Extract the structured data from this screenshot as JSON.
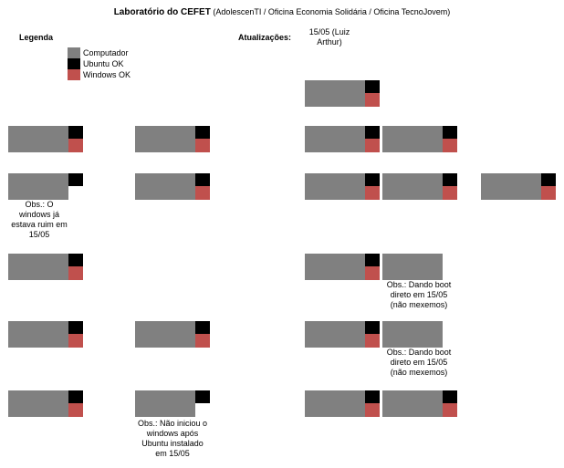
{
  "header": {
    "title_bold": "Laboratório do CEFET",
    "title_rest": "(AdolescenTI / Oficina Economia Solidária / Oficina TecnoJovem)"
  },
  "legend": {
    "title": "Legenda",
    "items": [
      {
        "label": "Computador",
        "color": "#808080"
      },
      {
        "label": "Ubuntu OK",
        "color": "#000000"
      },
      {
        "label": "Windows OK",
        "color": "#c0504d"
      }
    ]
  },
  "updates": {
    "title": "Atualizações:",
    "entries": [
      "15/05 (Luiz Arthur)"
    ]
  },
  "notes": {
    "n1": "Obs.: O windows já estava ruim em 15/05",
    "n2": "Obs.: Dando boot direto em 15/05 (não mexemos)",
    "n3": "Obs.: Dando boot direto em 15/05 (não mexemos)",
    "n4": "Obs.: Não iniciou o windows após Ubuntu instalado em 15/05"
  },
  "computers": [
    {
      "ubuntu_ok": true,
      "windows_ok": true
    },
    {
      "ubuntu_ok": true,
      "windows_ok": true
    },
    {
      "ubuntu_ok": true,
      "windows_ok": true
    },
    {
      "ubuntu_ok": true,
      "windows_ok": true
    },
    {
      "ubuntu_ok": true,
      "windows_ok": true
    },
    {
      "ubuntu_ok": true,
      "windows_ok": false
    },
    {
      "ubuntu_ok": true,
      "windows_ok": true
    },
    {
      "ubuntu_ok": true,
      "windows_ok": true
    },
    {
      "ubuntu_ok": true,
      "windows_ok": true
    },
    {
      "ubuntu_ok": true,
      "windows_ok": true
    },
    {
      "ubuntu_ok": true,
      "windows_ok": true
    },
    {
      "ubuntu_ok": true,
      "windows_ok": true
    },
    {
      "ubuntu_ok": false,
      "windows_ok": false
    },
    {
      "ubuntu_ok": true,
      "windows_ok": true
    },
    {
      "ubuntu_ok": true,
      "windows_ok": true
    },
    {
      "ubuntu_ok": true,
      "windows_ok": true
    },
    {
      "ubuntu_ok": false,
      "windows_ok": false
    },
    {
      "ubuntu_ok": true,
      "windows_ok": true
    },
    {
      "ubuntu_ok": true,
      "windows_ok": false
    },
    {
      "ubuntu_ok": true,
      "windows_ok": true
    },
    {
      "ubuntu_ok": true,
      "windows_ok": true
    }
  ]
}
